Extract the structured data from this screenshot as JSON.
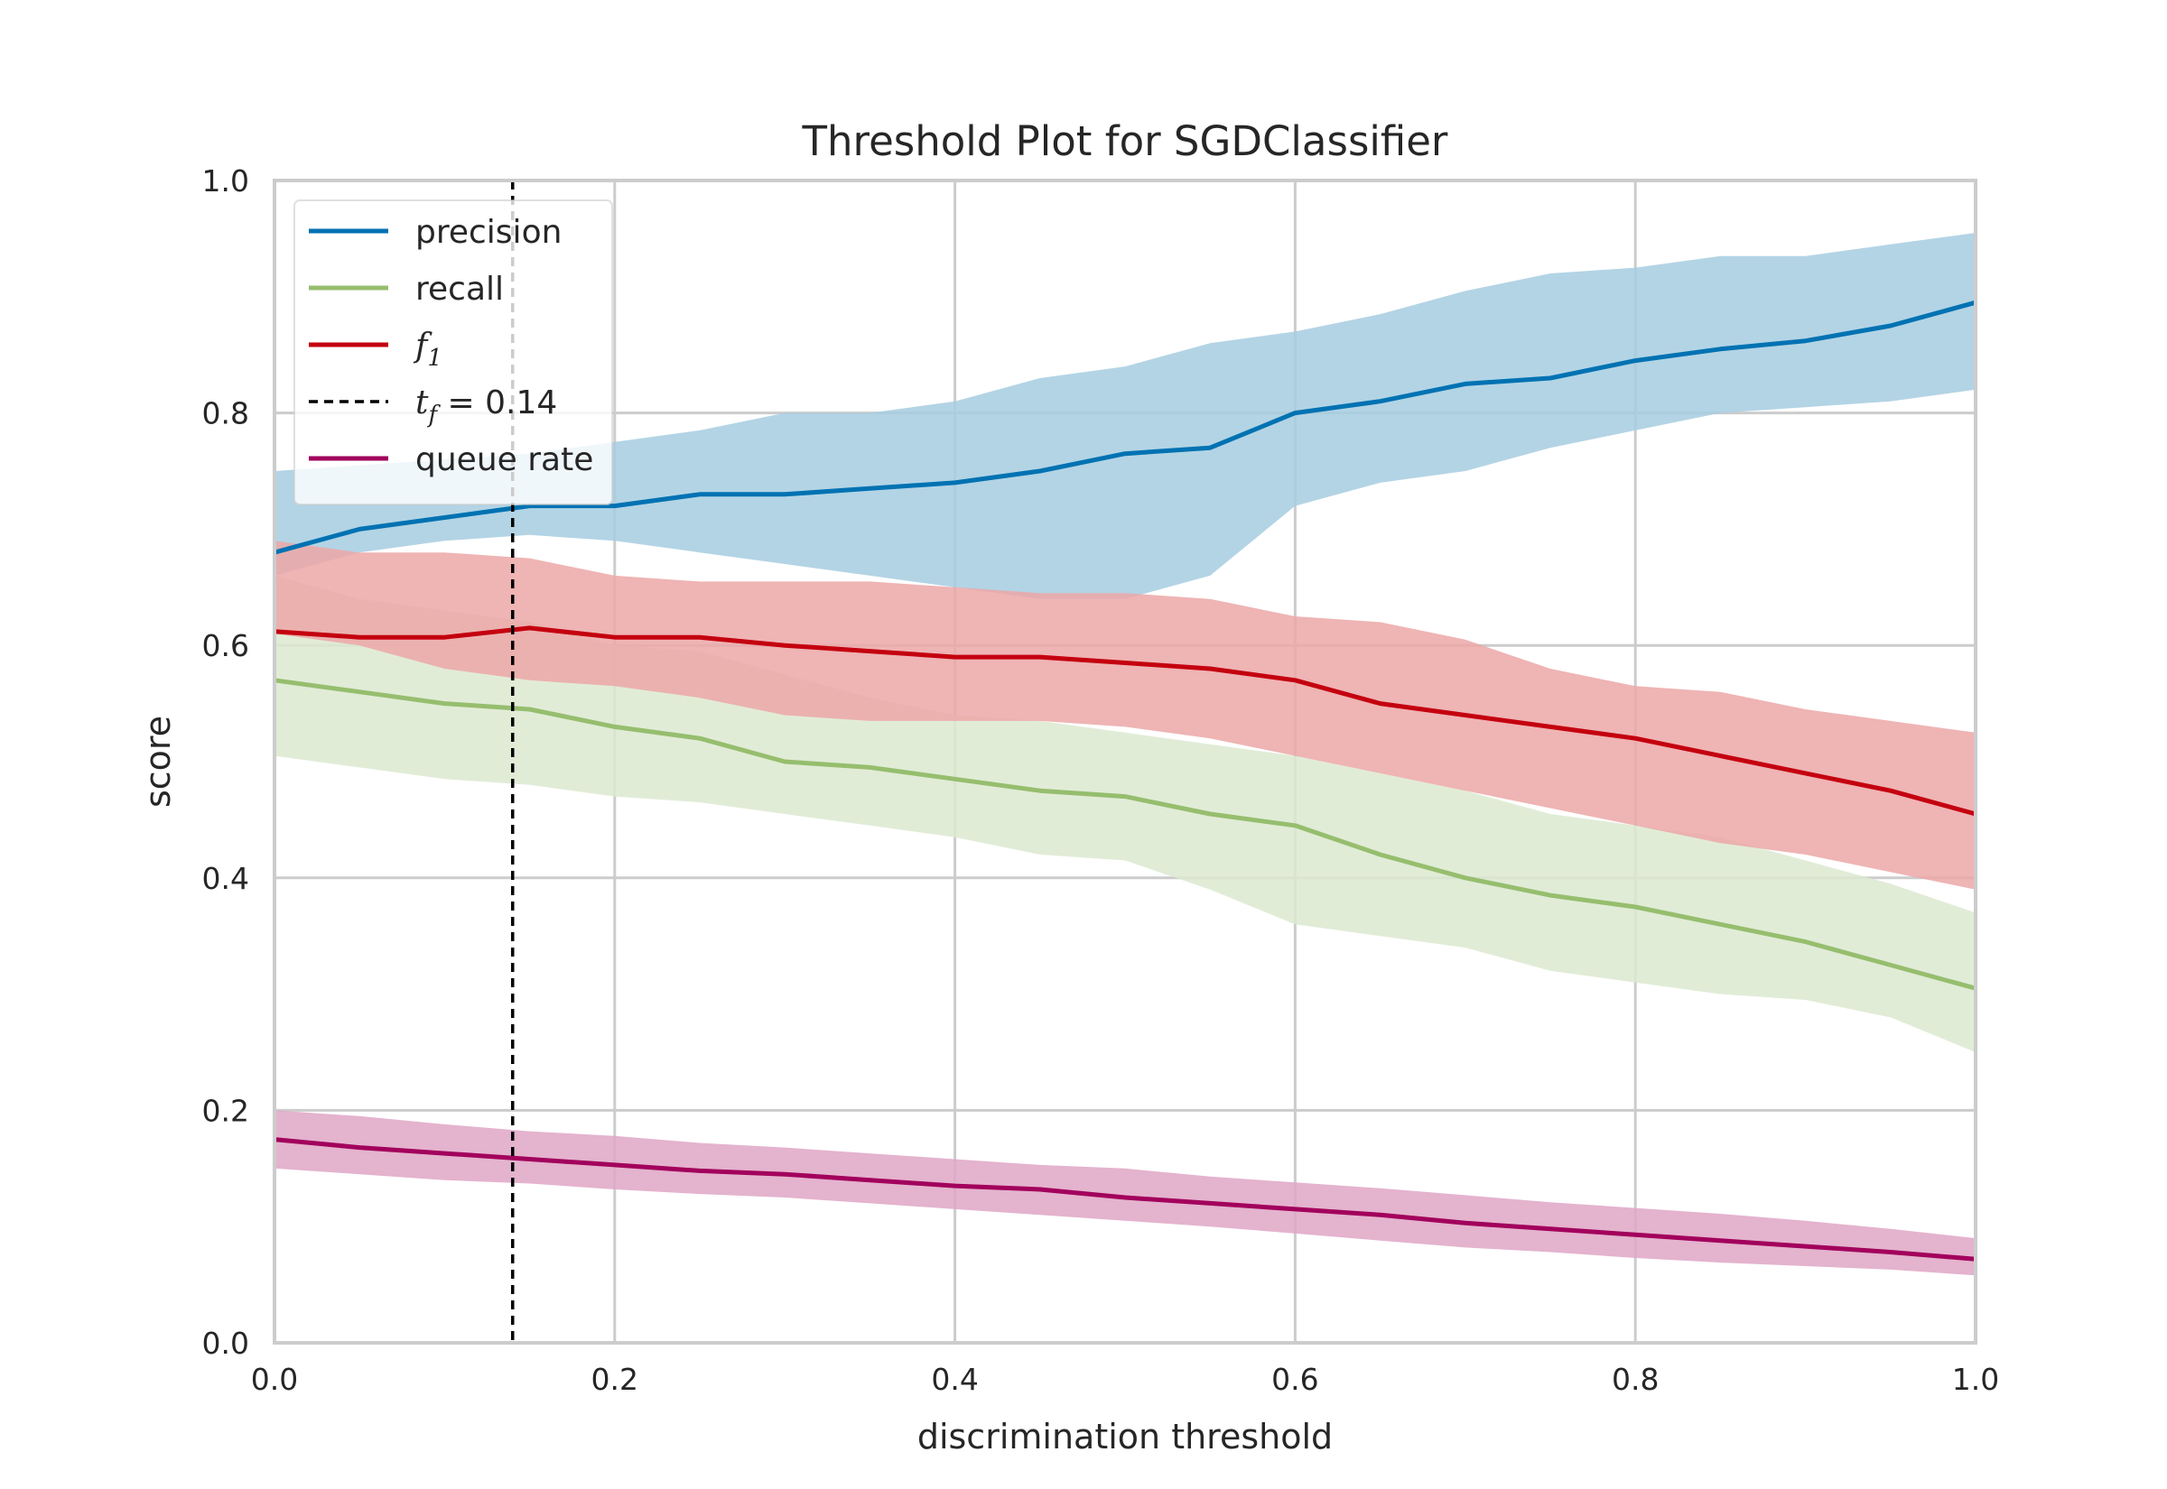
{
  "chart_data": {
    "type": "line",
    "title": "Threshold Plot for SGDClassifier",
    "xlabel": "discrimination threshold",
    "ylabel": "score",
    "xlim": [
      0.0,
      1.0
    ],
    "ylim": [
      0.0,
      1.0
    ],
    "xticks": [
      "0.0",
      "0.2",
      "0.4",
      "0.6",
      "0.8",
      "1.0"
    ],
    "yticks": [
      "0.0",
      "0.2",
      "0.4",
      "0.6",
      "0.8",
      "1.0"
    ],
    "grid": true,
    "legend_position": "upper-left",
    "x": [
      0.0,
      0.05,
      0.1,
      0.15,
      0.2,
      0.25,
      0.3,
      0.35,
      0.4,
      0.45,
      0.5,
      0.55,
      0.6,
      0.65,
      0.7,
      0.75,
      0.8,
      0.85,
      0.9,
      0.95,
      1.0
    ],
    "series": [
      {
        "name": "precision",
        "color": "#0072b2",
        "band_color": "#a6cde0",
        "values": [
          0.68,
          0.7,
          0.71,
          0.72,
          0.72,
          0.73,
          0.73,
          0.735,
          0.74,
          0.75,
          0.765,
          0.77,
          0.8,
          0.81,
          0.825,
          0.83,
          0.845,
          0.855,
          0.862,
          0.875,
          0.895
        ],
        "lower": [
          0.66,
          0.68,
          0.69,
          0.695,
          0.69,
          0.68,
          0.67,
          0.66,
          0.65,
          0.64,
          0.64,
          0.66,
          0.72,
          0.74,
          0.75,
          0.77,
          0.785,
          0.8,
          0.805,
          0.81,
          0.82
        ],
        "upper": [
          0.75,
          0.755,
          0.76,
          0.765,
          0.775,
          0.785,
          0.8,
          0.8,
          0.81,
          0.83,
          0.84,
          0.86,
          0.87,
          0.885,
          0.905,
          0.92,
          0.925,
          0.935,
          0.935,
          0.945,
          0.955
        ]
      },
      {
        "name": "recall",
        "color": "#96be6e",
        "band_color": "#dce9d0",
        "values": [
          0.57,
          0.56,
          0.55,
          0.545,
          0.53,
          0.52,
          0.5,
          0.495,
          0.485,
          0.475,
          0.47,
          0.455,
          0.445,
          0.42,
          0.4,
          0.385,
          0.375,
          0.36,
          0.345,
          0.325,
          0.305
        ],
        "lower": [
          0.505,
          0.495,
          0.485,
          0.48,
          0.47,
          0.465,
          0.455,
          0.445,
          0.435,
          0.42,
          0.415,
          0.39,
          0.36,
          0.35,
          0.34,
          0.32,
          0.31,
          0.3,
          0.295,
          0.28,
          0.25
        ],
        "upper": [
          0.66,
          0.64,
          0.63,
          0.62,
          0.6,
          0.595,
          0.575,
          0.555,
          0.54,
          0.535,
          0.525,
          0.515,
          0.505,
          0.49,
          0.475,
          0.455,
          0.445,
          0.435,
          0.415,
          0.395,
          0.37
        ]
      },
      {
        "name": "f1",
        "color": "#c4000f",
        "band_color": "#eca7a7",
        "values": [
          0.612,
          0.607,
          0.607,
          0.615,
          0.607,
          0.607,
          0.6,
          0.595,
          0.59,
          0.59,
          0.585,
          0.58,
          0.57,
          0.55,
          0.54,
          0.53,
          0.52,
          0.505,
          0.49,
          0.475,
          0.455
        ],
        "lower": [
          0.61,
          0.6,
          0.58,
          0.57,
          0.565,
          0.555,
          0.54,
          0.535,
          0.535,
          0.535,
          0.53,
          0.52,
          0.505,
          0.49,
          0.475,
          0.46,
          0.445,
          0.43,
          0.42,
          0.405,
          0.39
        ],
        "upper": [
          0.69,
          0.68,
          0.68,
          0.675,
          0.66,
          0.655,
          0.655,
          0.655,
          0.65,
          0.645,
          0.645,
          0.64,
          0.625,
          0.62,
          0.605,
          0.58,
          0.565,
          0.56,
          0.545,
          0.535,
          0.525
        ]
      },
      {
        "name": "queue rate",
        "color": "#a2005c",
        "band_color": "#dfa6c6",
        "values": [
          0.175,
          0.168,
          0.163,
          0.158,
          0.153,
          0.148,
          0.145,
          0.14,
          0.135,
          0.132,
          0.125,
          0.12,
          0.115,
          0.11,
          0.103,
          0.098,
          0.093,
          0.088,
          0.083,
          0.078,
          0.072
        ],
        "lower": [
          0.15,
          0.145,
          0.14,
          0.137,
          0.132,
          0.128,
          0.125,
          0.12,
          0.115,
          0.11,
          0.105,
          0.1,
          0.094,
          0.088,
          0.082,
          0.078,
          0.073,
          0.069,
          0.066,
          0.063,
          0.058
        ],
        "upper": [
          0.2,
          0.195,
          0.188,
          0.182,
          0.178,
          0.172,
          0.168,
          0.163,
          0.158,
          0.153,
          0.15,
          0.143,
          0.138,
          0.133,
          0.127,
          0.121,
          0.116,
          0.111,
          0.105,
          0.098,
          0.09
        ]
      }
    ],
    "threshold_line": {
      "label_var": "t",
      "label_sub": "f",
      "label_value": " = 0.14",
      "value": 0.14,
      "color": "#000000"
    },
    "legend": [
      {
        "key": "precision",
        "text": "precision",
        "sub": "",
        "color": "#0072b2",
        "style": "solid"
      },
      {
        "key": "recall",
        "text": "recall",
        "sub": "",
        "color": "#96be6e",
        "style": "solid"
      },
      {
        "key": "f1",
        "text": "f",
        "sub": "1",
        "color": "#c4000f",
        "style": "solid"
      },
      {
        "key": "threshold",
        "text": "t",
        "sub": "f",
        "suffix": " = 0.14",
        "color": "#000000",
        "style": "dashed"
      },
      {
        "key": "queue-rate",
        "text": "queue rate",
        "sub": "",
        "color": "#a2005c",
        "style": "solid"
      }
    ]
  }
}
